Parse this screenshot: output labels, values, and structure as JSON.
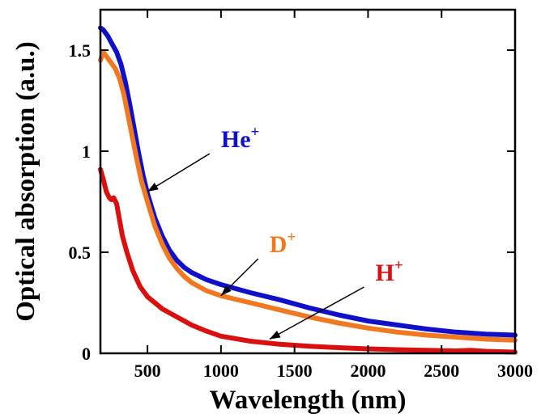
{
  "chart_data": {
    "type": "line",
    "title": "",
    "xlabel": "Wavelength (nm)",
    "ylabel": "Optical absorption (a.u.)",
    "xlim": [
      180,
      3000
    ],
    "ylim": [
      0,
      1.7
    ],
    "grid": false,
    "x_ticks": [
      {
        "value": 500,
        "label": "500"
      },
      {
        "value": 1000,
        "label": "1000"
      },
      {
        "value": 1500,
        "label": "1500"
      },
      {
        "value": 2000,
        "label": "2000"
      },
      {
        "value": 2500,
        "label": "2500"
      },
      {
        "value": 3000,
        "label": "3000"
      }
    ],
    "y_ticks": [
      {
        "value": 0,
        "label": "0"
      },
      {
        "value": 0.5,
        "label": "0.5"
      },
      {
        "value": 1,
        "label": "1"
      },
      {
        "value": 1.5,
        "label": "1.5"
      }
    ],
    "series": [
      {
        "name": "He",
        "sup": "+",
        "color": "#1010c8",
        "points": [
          [
            180,
            1.61
          ],
          [
            200,
            1.6
          ],
          [
            230,
            1.57
          ],
          [
            260,
            1.53
          ],
          [
            290,
            1.49
          ],
          [
            320,
            1.43
          ],
          [
            350,
            1.34
          ],
          [
            380,
            1.23
          ],
          [
            410,
            1.11
          ],
          [
            440,
            0.99
          ],
          [
            470,
            0.88
          ],
          [
            500,
            0.79
          ],
          [
            550,
            0.67
          ],
          [
            600,
            0.58
          ],
          [
            650,
            0.51
          ],
          [
            700,
            0.46
          ],
          [
            750,
            0.425
          ],
          [
            800,
            0.4
          ],
          [
            900,
            0.365
          ],
          [
            1000,
            0.34
          ],
          [
            1200,
            0.3
          ],
          [
            1400,
            0.265
          ],
          [
            1600,
            0.225
          ],
          [
            1800,
            0.19
          ],
          [
            2000,
            0.16
          ],
          [
            2200,
            0.14
          ],
          [
            2400,
            0.12
          ],
          [
            2600,
            0.105
          ],
          [
            2800,
            0.095
          ],
          [
            3000,
            0.09
          ]
        ],
        "label_at": [
          1000,
          1.02
        ],
        "arrow_to": [
          500,
          0.8
        ]
      },
      {
        "name": "D",
        "sup": "+",
        "color": "#f07820",
        "points": [
          [
            180,
            1.45
          ],
          [
            200,
            1.49
          ],
          [
            220,
            1.47
          ],
          [
            250,
            1.44
          ],
          [
            280,
            1.41
          ],
          [
            310,
            1.36
          ],
          [
            340,
            1.28
          ],
          [
            370,
            1.17
          ],
          [
            400,
            1.06
          ],
          [
            430,
            0.95
          ],
          [
            460,
            0.85
          ],
          [
            500,
            0.75
          ],
          [
            550,
            0.63
          ],
          [
            600,
            0.54
          ],
          [
            650,
            0.47
          ],
          [
            700,
            0.42
          ],
          [
            750,
            0.38
          ],
          [
            800,
            0.35
          ],
          [
            900,
            0.31
          ],
          [
            1000,
            0.285
          ],
          [
            1200,
            0.25
          ],
          [
            1400,
            0.215
          ],
          [
            1600,
            0.18
          ],
          [
            1800,
            0.15
          ],
          [
            2000,
            0.125
          ],
          [
            2200,
            0.105
          ],
          [
            2400,
            0.09
          ],
          [
            2600,
            0.08
          ],
          [
            2800,
            0.07
          ],
          [
            3000,
            0.065
          ]
        ],
        "label_at": [
          1330,
          0.5
        ],
        "arrow_to": [
          1000,
          0.285
        ]
      },
      {
        "name": "H",
        "sup": "+",
        "color": "#d81010",
        "points": [
          [
            180,
            0.91
          ],
          [
            200,
            0.86
          ],
          [
            220,
            0.8
          ],
          [
            240,
            0.77
          ],
          [
            255,
            0.76
          ],
          [
            270,
            0.77
          ],
          [
            290,
            0.74
          ],
          [
            310,
            0.66
          ],
          [
            330,
            0.58
          ],
          [
            360,
            0.5
          ],
          [
            400,
            0.41
          ],
          [
            450,
            0.33
          ],
          [
            500,
            0.28
          ],
          [
            600,
            0.22
          ],
          [
            700,
            0.18
          ],
          [
            800,
            0.14
          ],
          [
            900,
            0.11
          ],
          [
            1000,
            0.085
          ],
          [
            1200,
            0.06
          ],
          [
            1400,
            0.045
          ],
          [
            1600,
            0.035
          ],
          [
            1800,
            0.028
          ],
          [
            2000,
            0.022
          ],
          [
            2200,
            0.018
          ],
          [
            2400,
            0.015
          ],
          [
            2600,
            0.012
          ],
          [
            2700,
            0.015
          ],
          [
            2800,
            0.01
          ],
          [
            2900,
            0.008
          ],
          [
            3000,
            0.006
          ]
        ],
        "label_at": [
          2050,
          0.36
        ],
        "arrow_to": [
          1330,
          0.07
        ]
      }
    ]
  }
}
